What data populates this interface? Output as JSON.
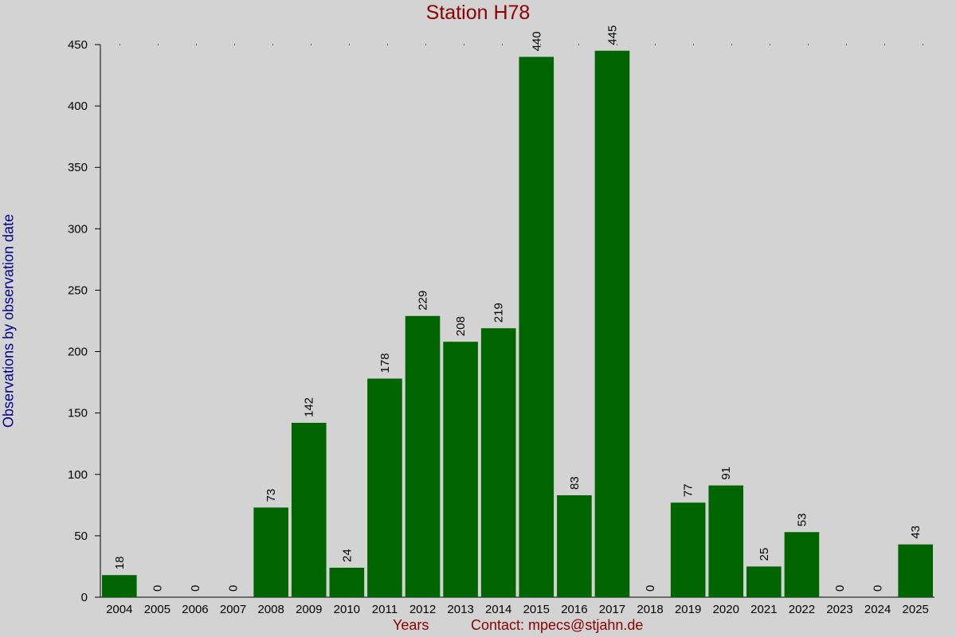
{
  "chart_data": {
    "type": "bar",
    "title": "Station H78",
    "xlabel": "Years",
    "ylabel": "Observations by observation date",
    "contact": "Contact: mpecs@stjahn.de",
    "categories": [
      "2004",
      "2005",
      "2006",
      "2007",
      "2008",
      "2009",
      "2010",
      "2011",
      "2012",
      "2013",
      "2014",
      "2015",
      "2016",
      "2017",
      "2018",
      "2019",
      "2020",
      "2021",
      "2022",
      "2023",
      "2024",
      "2025"
    ],
    "values": [
      18,
      0,
      0,
      0,
      73,
      142,
      24,
      178,
      229,
      208,
      219,
      440,
      83,
      445,
      0,
      77,
      91,
      25,
      53,
      0,
      0,
      43
    ],
    "ylim": [
      0,
      450
    ],
    "yticks": [
      0,
      50,
      100,
      150,
      200,
      250,
      300,
      350,
      400,
      450
    ],
    "grid": "dotted at 450 only",
    "legend": "none",
    "colors": {
      "bar": "#006400",
      "title": "#8b0000",
      "ylabel": "#00008b",
      "background": "#d3d3d3"
    }
  }
}
